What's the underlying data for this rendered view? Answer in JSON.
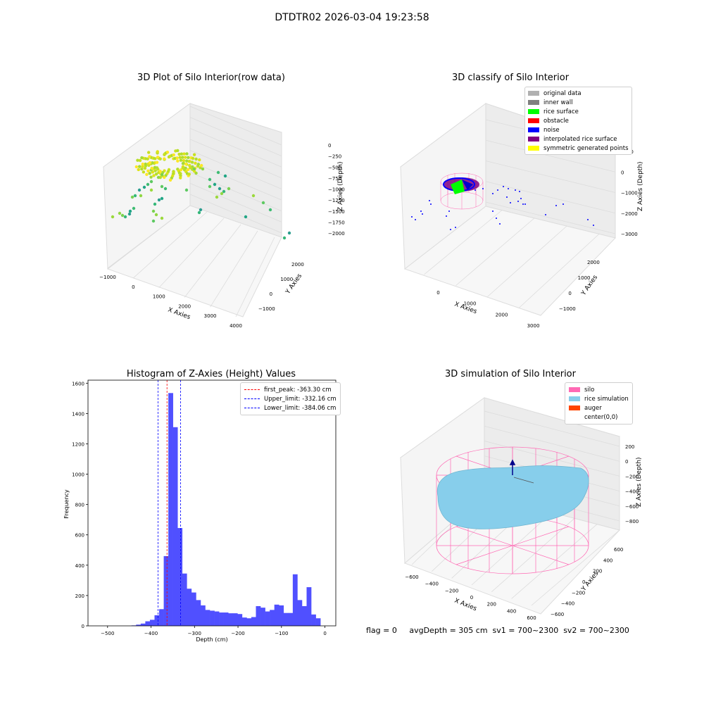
{
  "figure": {
    "supertitle": "DTDTR02 2026-03-04 19:23:58",
    "footer": "flag = 0     avgDepth = 305 cm  sv1 = 700~2300  sv2 = 700~2300"
  },
  "colors": {
    "original_data": "#b0b0b0",
    "inner_wall": "#808080",
    "rice_surface": "#00ff00",
    "obstacle": "#ff0000",
    "noise": "#0000ff",
    "interpolated_rice_surface": "#800080",
    "symmetric_generated_points": "#ffff00",
    "silo": "#ff69b4",
    "rice_simulation": "#87ceeb",
    "auger": "#ff4500",
    "histogram_bar": "#5050ff",
    "first_peak_line": "#ff0000",
    "limit_line": "#0000ff"
  },
  "chart_data": [
    {
      "type": "scatter",
      "title": "3D Plot of Silo Interior(row data)",
      "xlabel": "X Axies",
      "ylabel": "Y Axies",
      "zlabel": "Z Axies (Depth)",
      "x_ticks": [
        "−1000",
        "0",
        "1000",
        "2000",
        "3000",
        "4000"
      ],
      "y_ticks": [
        "−1000",
        "0",
        "1000",
        "2000"
      ],
      "z_ticks": [
        "0",
        "−250",
        "−500",
        "−750",
        "−1000",
        "−1250",
        "−1500",
        "−1750",
        "−2000"
      ],
      "xlim": [
        -1000,
        4000
      ],
      "ylim": [
        -1500,
        2500
      ],
      "zlim": [
        -2200,
        100
      ]
    },
    {
      "type": "scatter",
      "title": "3D classify of Silo Interior",
      "xlabel": "X Axies",
      "ylabel": "Y Axies",
      "zlabel": "Z Axies (Depth)",
      "x_ticks": [
        "0",
        "1000",
        "2000",
        "3000"
      ],
      "y_ticks": [
        "−1000",
        "0",
        "1000",
        "2000"
      ],
      "z_ticks": [
        "1000",
        "0",
        "−1000",
        "−2000",
        "−3000"
      ],
      "legend": [
        "original data",
        "inner wall",
        "rice surface",
        "obstacle",
        "noise",
        "interpolated rice surface",
        "symmetric generated points"
      ],
      "legend_placement": "top-right"
    },
    {
      "type": "bar",
      "title": "Histogram of Z-Axies (Height) Values",
      "xlabel": "Depth (cm)",
      "ylabel": "Frequency",
      "xlim": [
        -545,
        25
      ],
      "ylim": [
        0,
        1620
      ],
      "x_ticks": [
        -500,
        -400,
        -300,
        -200,
        -100,
        0
      ],
      "x_tick_labels": [
        "−500",
        "−400",
        "−300",
        "−200",
        "−100",
        "0"
      ],
      "y_ticks": [
        0,
        200,
        400,
        600,
        800,
        1000,
        1200,
        1400,
        1600
      ],
      "bin_start": -445,
      "bin_width": 10.6,
      "values": [
        3,
        8,
        15,
        30,
        40,
        70,
        110,
        460,
        1535,
        1310,
        645,
        345,
        245,
        220,
        170,
        135,
        105,
        100,
        95,
        88,
        88,
        83,
        83,
        78,
        55,
        50,
        58,
        130,
        120,
        95,
        105,
        140,
        135,
        85,
        85,
        340,
        170,
        130,
        255,
        75,
        50
      ],
      "lines": [
        {
          "label": "first_peak: -363.30 cm",
          "x": -363.3
        },
        {
          "label": "Upper_limit: -332.16 cm",
          "x": -332.16
        },
        {
          "label": "Lower_limit: -384.06 cm",
          "x": -384.06
        }
      ],
      "legend_placement": "top-right"
    },
    {
      "type": "scatter",
      "title": "3D simulation of Silo Interior",
      "xlabel": "X Axies",
      "ylabel": "Y Axies",
      "zlabel": "Z Axies (Depth)",
      "x_ticks": [
        "−600",
        "−400",
        "−200",
        "0",
        "200",
        "400",
        "600"
      ],
      "y_ticks": [
        "−600",
        "−400",
        "−200",
        "0",
        "200",
        "400",
        "600"
      ],
      "z_ticks": [
        "200",
        "0",
        "−200",
        "−400",
        "−600",
        "−800"
      ],
      "legend": [
        "silo",
        "rice simulation",
        "auger",
        "center(0,0)"
      ],
      "legend_placement": "top-right"
    }
  ]
}
